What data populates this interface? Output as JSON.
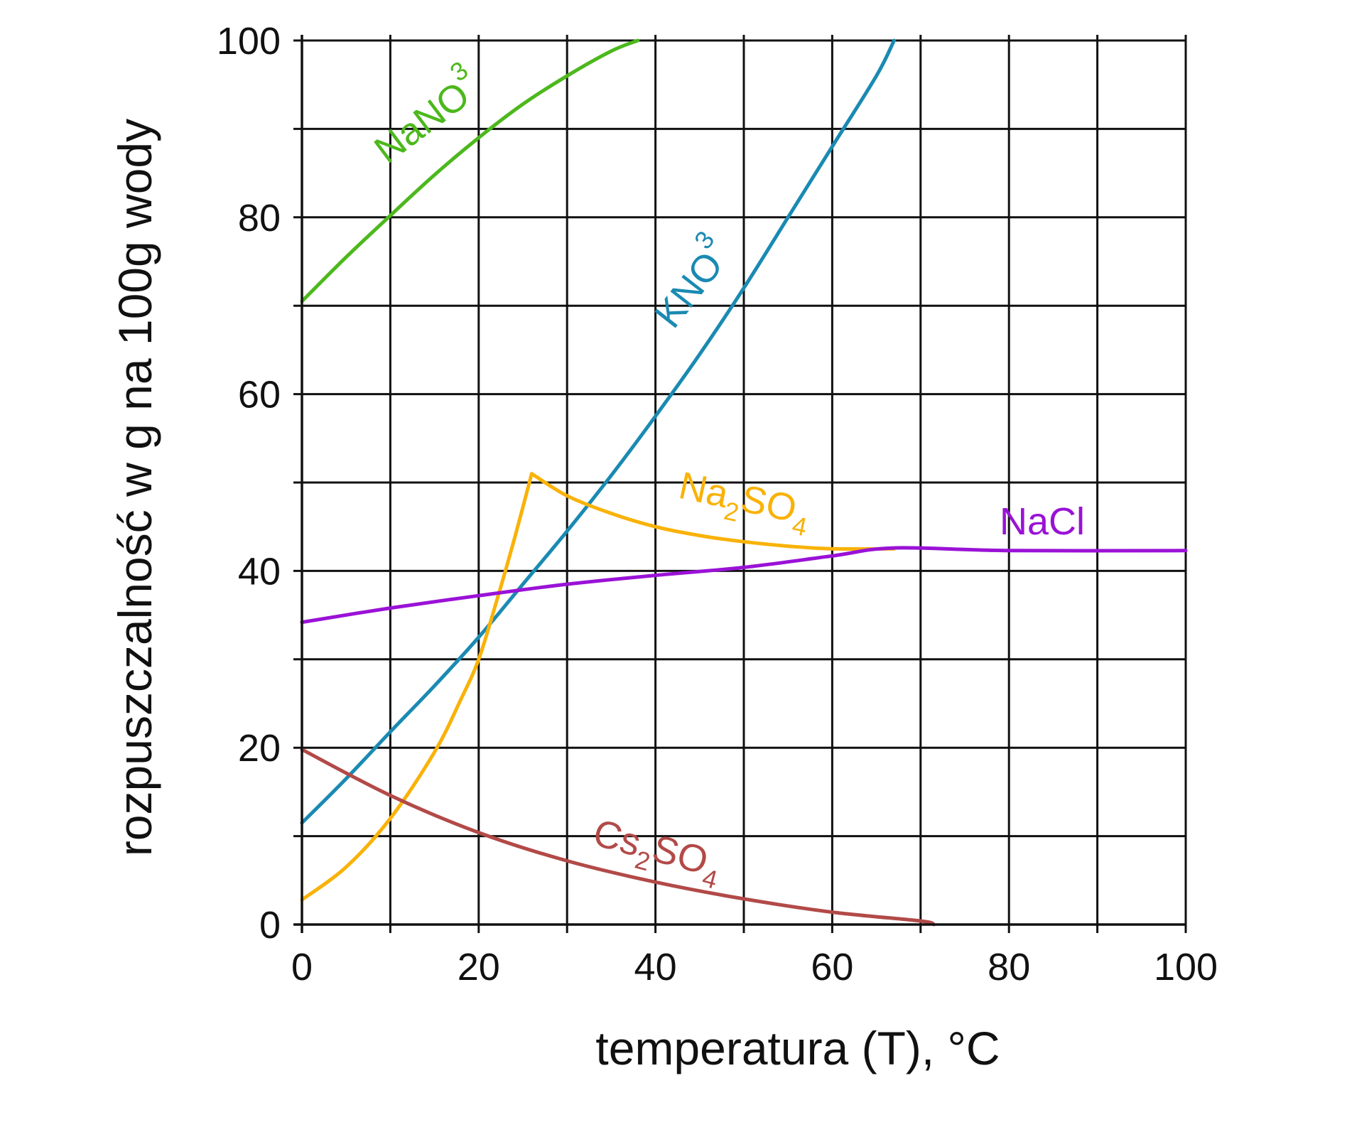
{
  "chart_data": {
    "type": "line",
    "title": "",
    "xlabel": "temperatura (T), °C",
    "ylabel": "rozpuszczalność w g na 100g wody",
    "xlim": [
      0,
      100
    ],
    "ylim": [
      0,
      100
    ],
    "grid": true,
    "x_major_ticks": [
      0,
      20,
      40,
      60,
      80,
      100
    ],
    "y_major_ticks": [
      0,
      20,
      40,
      60,
      80,
      100
    ],
    "x_gridlines": [
      0,
      10,
      20,
      30,
      40,
      50,
      60,
      70,
      80,
      90,
      100
    ],
    "y_gridlines": [
      0,
      10,
      20,
      30,
      40,
      50,
      60,
      70,
      80,
      90,
      100
    ],
    "series": [
      {
        "name": "NaNO3",
        "label": {
          "main": "NaNO",
          "sub": "3"
        },
        "color": "#4cb81c",
        "points": [
          [
            0,
            70.5
          ],
          [
            5,
            75.5
          ],
          [
            10,
            80.2
          ],
          [
            15,
            84.8
          ],
          [
            20,
            89.0
          ],
          [
            25,
            92.8
          ],
          [
            30,
            96.0
          ],
          [
            35,
            98.8
          ],
          [
            38,
            100
          ]
        ]
      },
      {
        "name": "KNO3",
        "label": {
          "main": "KNO",
          "sub": "3"
        },
        "color": "#1a8ab2",
        "points": [
          [
            0,
            11.5
          ],
          [
            5,
            16.5
          ],
          [
            10,
            21.8
          ],
          [
            15,
            27.0
          ],
          [
            20,
            32.5
          ],
          [
            25,
            38.5
          ],
          [
            30,
            44.5
          ],
          [
            35,
            50.8
          ],
          [
            40,
            57.5
          ],
          [
            45,
            64.5
          ],
          [
            50,
            72.0
          ],
          [
            55,
            80.0
          ],
          [
            60,
            88.0
          ],
          [
            65,
            96.0
          ],
          [
            67,
            100
          ]
        ]
      },
      {
        "name": "Na2SO4",
        "label": {
          "main": "Na",
          "sub1": "2",
          "mid": "SO",
          "sub2": "4"
        },
        "color": "#f9b208",
        "points": [
          [
            0,
            2.8
          ],
          [
            5,
            6.5
          ],
          [
            10,
            12.0
          ],
          [
            15,
            19.5
          ],
          [
            18,
            25.5
          ],
          [
            20,
            30.0
          ],
          [
            22,
            36.5
          ],
          [
            24,
            43.5
          ],
          [
            26,
            51.0
          ],
          [
            30,
            48.5
          ],
          [
            35,
            46.5
          ],
          [
            40,
            45.0
          ],
          [
            45,
            44.0
          ],
          [
            50,
            43.3
          ],
          [
            55,
            42.8
          ],
          [
            60,
            42.5
          ],
          [
            67,
            42.5
          ]
        ]
      },
      {
        "name": "NaCl",
        "label": {
          "main": "NaCl"
        },
        "color": "#9a12d6",
        "points": [
          [
            0,
            34.2
          ],
          [
            10,
            35.8
          ],
          [
            20,
            37.2
          ],
          [
            30,
            38.5
          ],
          [
            40,
            39.5
          ],
          [
            50,
            40.4
          ],
          [
            60,
            41.7
          ],
          [
            67,
            42.6
          ],
          [
            80,
            42.3
          ],
          [
            100,
            42.3
          ]
        ]
      },
      {
        "name": "Cs2SO4",
        "label": {
          "main": "Cs",
          "sub1": "2",
          "mid": "SO",
          "sub2": "4"
        },
        "color": "#b24a48",
        "points": [
          [
            0,
            19.8
          ],
          [
            10,
            14.6
          ],
          [
            20,
            10.4
          ],
          [
            30,
            7.2
          ],
          [
            40,
            4.8
          ],
          [
            50,
            2.9
          ],
          [
            60,
            1.4
          ],
          [
            70,
            0.4
          ],
          [
            71.5,
            0
          ]
        ]
      }
    ]
  }
}
